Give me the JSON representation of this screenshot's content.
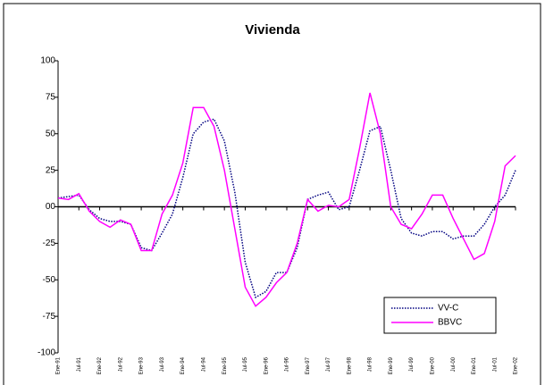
{
  "chart_data": {
    "type": "line",
    "title": "Vivienda",
    "x": [
      0,
      1,
      2,
      3,
      4,
      5,
      6,
      7,
      8,
      9,
      10,
      11,
      12,
      13,
      14,
      15,
      16,
      17,
      18,
      19,
      20,
      21,
      22,
      23,
      24,
      25,
      26,
      27,
      28,
      29,
      30,
      31,
      32,
      33,
      34,
      35,
      36,
      37,
      38,
      39,
      40,
      41,
      42,
      43,
      44
    ],
    "xlim": [
      0,
      44
    ],
    "xticks": [
      {
        "value": 0,
        "label": "Ene-91"
      },
      {
        "value": 2,
        "label": "Jul-91"
      },
      {
        "value": 4,
        "label": "Ene-92"
      },
      {
        "value": 6,
        "label": "Jul-92"
      },
      {
        "value": 8,
        "label": "Ene-93"
      },
      {
        "value": 10,
        "label": "Jul-93"
      },
      {
        "value": 12,
        "label": "Ene-94"
      },
      {
        "value": 14,
        "label": "Jul-94"
      },
      {
        "value": 16,
        "label": "Ene-95"
      },
      {
        "value": 18,
        "label": "Jul-95"
      },
      {
        "value": 20,
        "label": "Ene-96"
      },
      {
        "value": 22,
        "label": "Jul-96"
      },
      {
        "value": 24,
        "label": "Ene-97"
      },
      {
        "value": 26,
        "label": "Jul-97"
      },
      {
        "value": 28,
        "label": "Ene-98"
      },
      {
        "value": 30,
        "label": "Jul-98"
      },
      {
        "value": 32,
        "label": "Ene-99"
      },
      {
        "value": 34,
        "label": "Jul-99"
      },
      {
        "value": 36,
        "label": "Ene-00"
      },
      {
        "value": 38,
        "label": "Jul-00"
      },
      {
        "value": 40,
        "label": "Ene-01"
      },
      {
        "value": 42,
        "label": "Jul-01"
      },
      {
        "value": 44,
        "label": "Ene-02"
      }
    ],
    "ylim": [
      -100,
      100
    ],
    "yticks": [
      100,
      75,
      50,
      25,
      {
        "value": 0,
        "label": "00"
      },
      -25,
      -50,
      -75,
      -100
    ],
    "legend": "lower right",
    "series": [
      {
        "name": "VV-C",
        "color": "#000080",
        "dash": true,
        "values": [
          6,
          7,
          8,
          -2,
          -8,
          -10,
          -10,
          -12,
          -28,
          -30,
          -18,
          -5,
          20,
          50,
          58,
          60,
          45,
          10,
          -38,
          -62,
          -58,
          -45,
          -45,
          -28,
          5,
          8,
          10,
          -2,
          0,
          25,
          52,
          55,
          25,
          -8,
          -18,
          -20,
          -17,
          -17,
          -22,
          -20,
          -20,
          -12,
          0,
          8,
          25
        ]
      },
      {
        "name": "BBVC",
        "color": "#ff00ff",
        "dash": false,
        "values": [
          6,
          5,
          9,
          -3,
          -10,
          -14,
          -9,
          -12,
          -30,
          -30,
          -5,
          8,
          30,
          68,
          68,
          55,
          25,
          -15,
          -55,
          -68,
          -62,
          -52,
          -45,
          -25,
          5,
          -3,
          1,
          0,
          5,
          40,
          78,
          50,
          0,
          -12,
          -15,
          -5,
          8,
          8,
          -8,
          -22,
          -36,
          -32,
          -10,
          28,
          35
        ]
      }
    ]
  }
}
